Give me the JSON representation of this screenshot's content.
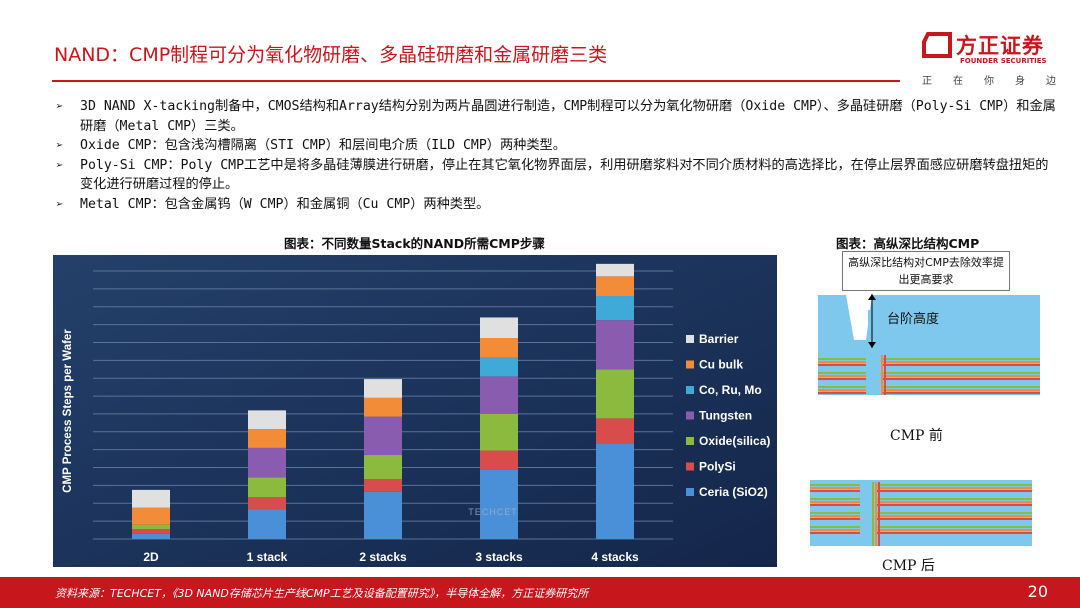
{
  "header": {
    "title": "NAND：CMP制程可分为氧化物研磨、多晶硅研磨和金属研磨三类",
    "logo_name": "方正证券",
    "logo_sub": "FOUNDER SECURITIES",
    "logo_slogan": "正在你身边"
  },
  "bullets": [
    "3D NAND X-tacking制备中，CMOS结构和Array结构分别为两片晶圆进行制造，CMP制程可以分为氧化物研磨（Oxide CMP）、多晶硅研磨（Poly-Si CMP）和金属研磨（Metal CMP）三类。",
    "Oxide CMP：包含浅沟槽隔离（STI CMP）和层间电介质（ILD CMP）两种类型。",
    "Poly-Si CMP：Poly CMP工艺中是将多晶硅薄膜进行研磨，停止在其它氧化物界面层，利用研磨浆料对不同介质材料的高选择比，在停止层界面感应研磨转盘扭矩的变化进行研磨过程的停止。",
    "Metal CMP：包含金属钨（W CMP）和金属铜（Cu CMP）两种类型。"
  ],
  "captions": {
    "left": "图表：不同数量Stack的NAND所需CMP步骤",
    "right": "图表：高纵深比结构CMP"
  },
  "right_figure": {
    "note": "高纵深比结构对CMP去除效率提出更高要求",
    "step_label": "台阶高度",
    "before_label": "CMP 前",
    "after_label": "CMP 后"
  },
  "chart_data": {
    "type": "bar",
    "stacked": true,
    "categories": [
      "2D",
      "1 stack",
      "2 stacks",
      "3 stacks",
      "4 stacks"
    ],
    "ylabel": "CMP Process Steps per Wafer",
    "watermark": "TECHCET",
    "series": [
      {
        "name": "Ceria (SiO2)",
        "color": "#4a90d9",
        "values": [
          0.6,
          3.3,
          5.3,
          7.8,
          10.7
        ]
      },
      {
        "name": "PolySi",
        "color": "#d94c4c",
        "values": [
          0.5,
          1.4,
          1.4,
          2.1,
          2.8
        ]
      },
      {
        "name": "Oxide(silica)",
        "color": "#8cba3f",
        "values": [
          0.5,
          2.2,
          2.7,
          4.1,
          5.5
        ]
      },
      {
        "name": "Tungsten",
        "color": "#8a5cb0",
        "values": [
          0,
          3.3,
          4.3,
          4.2,
          5.5
        ]
      },
      {
        "name": "Co, Ru, Mo",
        "color": "#3fa9d8",
        "values": [
          0,
          0,
          0,
          2.1,
          2.7
        ]
      },
      {
        "name": "Cu bulk",
        "color": "#f28c38",
        "values": [
          1.9,
          2.1,
          2.1,
          2.2,
          2.2
        ]
      },
      {
        "name": "Barrier",
        "color": "#e0e0e0",
        "values": [
          2.0,
          2.1,
          2.1,
          2.3,
          1.4
        ]
      }
    ],
    "ylim": [
      0,
      30
    ],
    "grid": true,
    "legend_position": "right"
  },
  "footer": {
    "source": "资料来源：TECHCET，《3D NAND存储芯片生产线CMP工艺及设备配置研究》，半导体全解，方正证券研究所",
    "page": "20"
  }
}
